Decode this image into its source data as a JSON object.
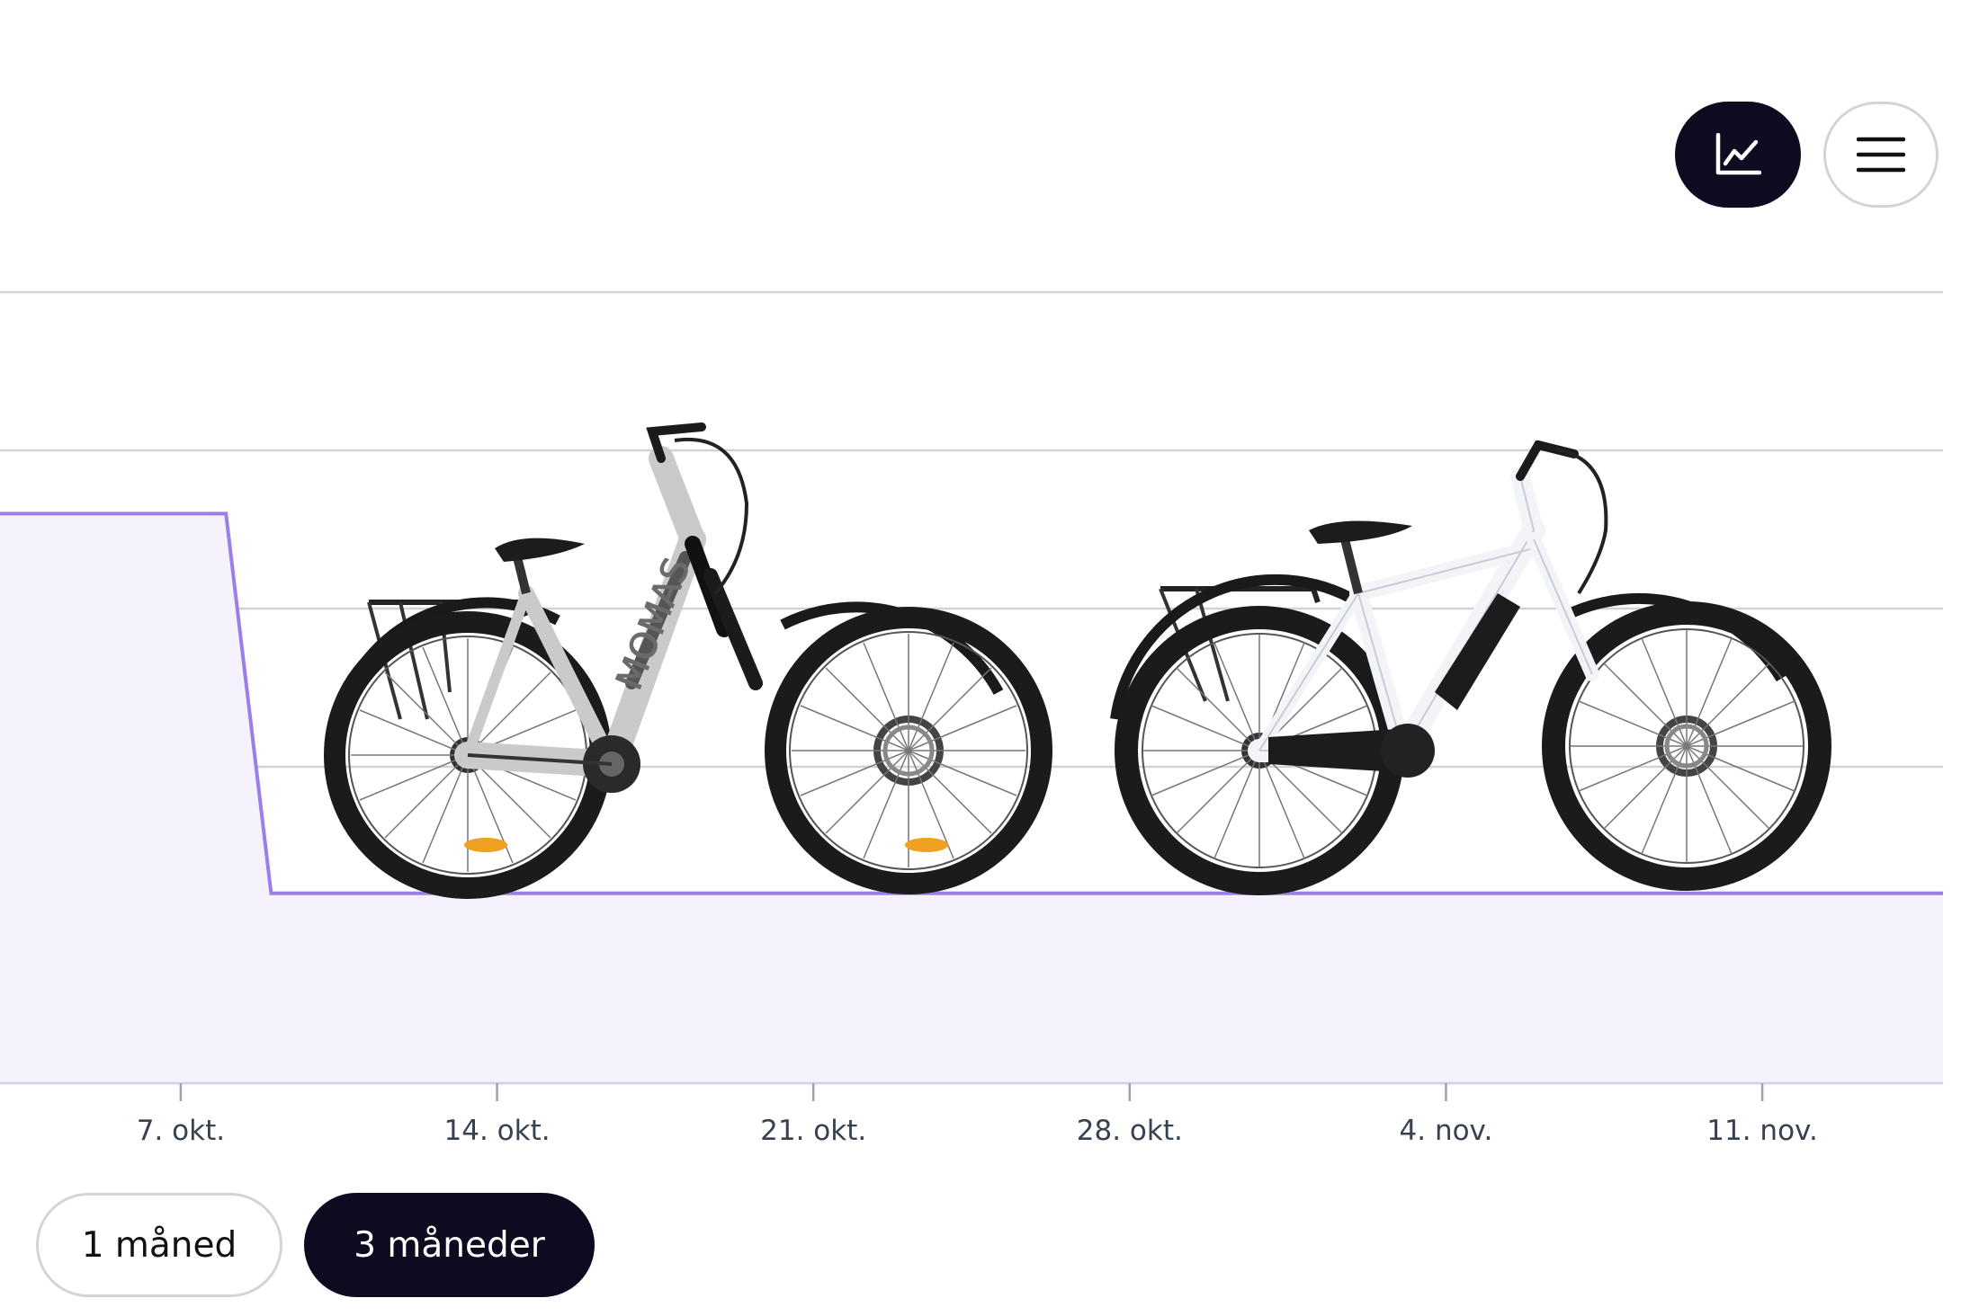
{
  "toolbar": {
    "chart_view_icon": "line-chart-icon",
    "list_view_icon": "hamburger-menu-icon"
  },
  "colors": {
    "accent": "#9b7fe6",
    "accent_fill": "#f5f1fd",
    "dark": "#0f0a1f",
    "grid": "#d1d1d6"
  },
  "range_selector": {
    "options": [
      {
        "label": "1 måned",
        "selected": false
      },
      {
        "label": "3 måneder",
        "selected": true
      }
    ]
  },
  "chart_data": {
    "type": "area",
    "x_tick_labels": [
      "7. okt.",
      "14. okt.",
      "21. okt.",
      "28. okt.",
      "4. nov.",
      "11. nov."
    ],
    "x_range": [
      "2024-10-03",
      "2024-11-15"
    ],
    "y_ticks": [
      0,
      1,
      2,
      3,
      4,
      5
    ],
    "ylim": [
      0,
      5
    ],
    "grid": true,
    "series": [
      {
        "x": [
          "2024-10-03",
          "2024-10-08",
          "2024-10-09",
          "2024-11-15"
        ],
        "values": [
          3.6,
          3.6,
          1.2,
          1.2
        ]
      }
    ]
  },
  "images": [
    {
      "icon": "grey-step-through-ebike-image"
    },
    {
      "icon": "white-trekking-ebike-image"
    }
  ]
}
